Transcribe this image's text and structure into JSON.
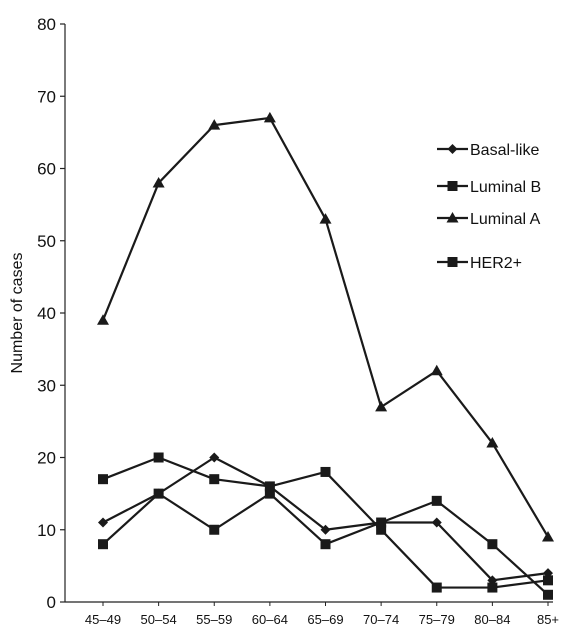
{
  "chart_data": {
    "type": "line",
    "title": "",
    "xlabel": "",
    "ylabel": "Number of cases",
    "ylim": [
      0,
      80
    ],
    "yticks": [
      0,
      10,
      20,
      30,
      40,
      50,
      60,
      70,
      80
    ],
    "grid": false,
    "legend_position": "right",
    "categories": [
      "45–49",
      "50–54",
      "55–59",
      "60–64",
      "65–69",
      "70–74",
      "75–79",
      "80–84",
      "85+"
    ],
    "series": [
      {
        "name": "Basal-like",
        "marker": "diamond",
        "color": "#1a1a1a",
        "values": [
          11,
          15,
          20,
          16,
          10,
          11,
          11,
          3,
          4
        ]
      },
      {
        "name": "Luminal B",
        "marker": "square",
        "color": "#1a1a1a",
        "values": [
          17,
          20,
          17,
          16,
          18,
          10,
          2,
          2,
          3
        ]
      },
      {
        "name": "Luminal A",
        "marker": "triangle",
        "color": "#1a1a1a",
        "values": [
          39,
          58,
          66,
          67,
          53,
          27,
          32,
          22,
          9
        ]
      },
      {
        "name": "HER2+",
        "marker": "square",
        "color": "#1a1a1a",
        "values": [
          8,
          15,
          10,
          15,
          8,
          11,
          14,
          8,
          1
        ]
      }
    ]
  }
}
